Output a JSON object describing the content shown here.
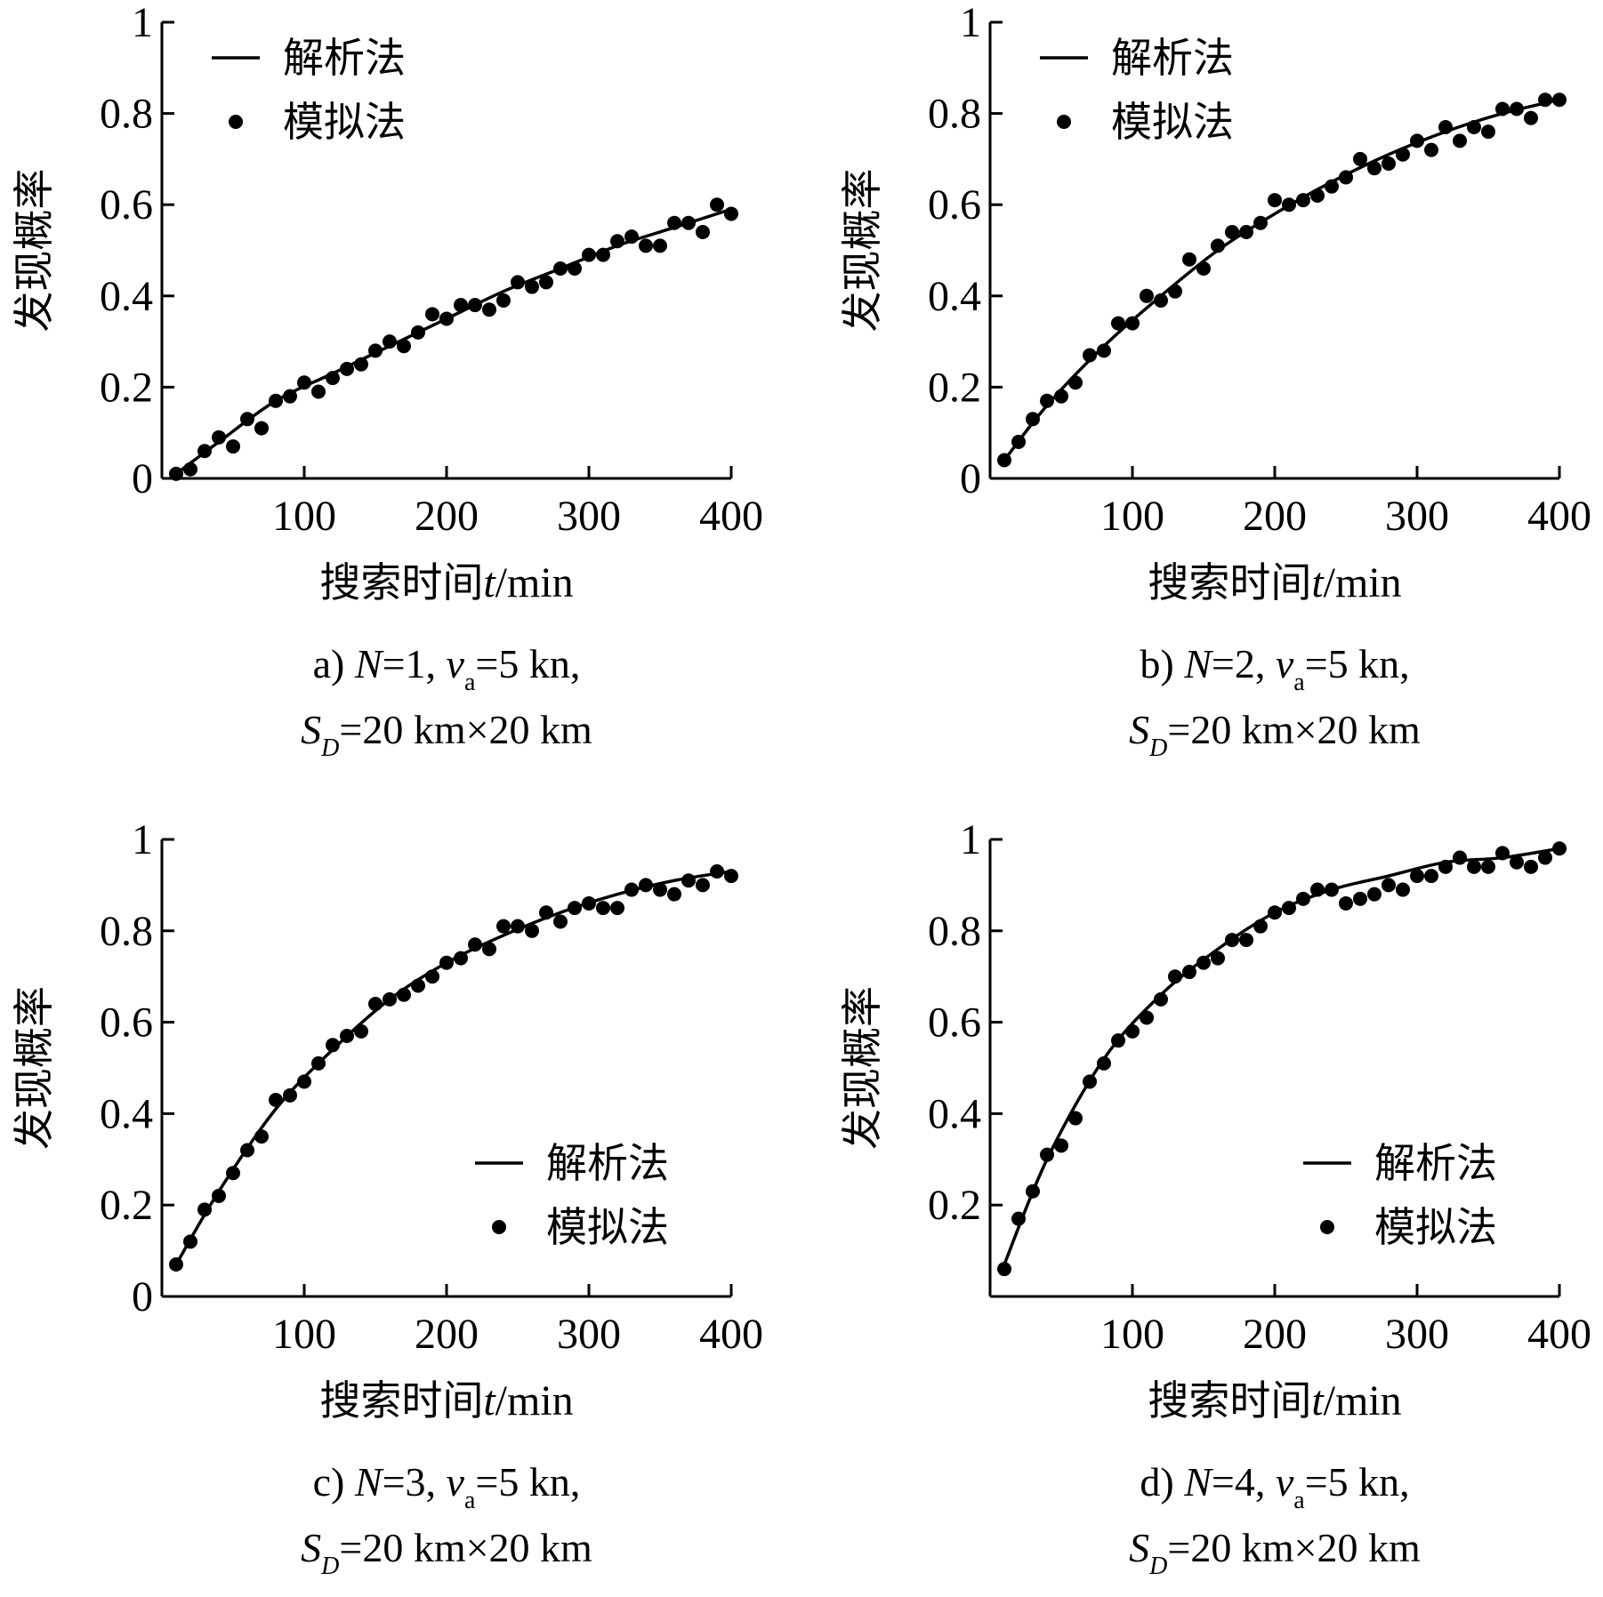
{
  "chart_data": [
    {
      "type": "line",
      "panel": "a",
      "caption_line1": "a) N=1, v_a=5 kn,",
      "caption_line2": "S_D=20 km×20 km",
      "caption": {
        "prefix": "a) ",
        "n_var": "N",
        "n_value": "=1, ",
        "v_var": "v",
        "v_sub": "a",
        "v_value": "=5 kn,",
        "s_var": "S",
        "s_sub": "D",
        "s_value": "=20 km×20 km"
      },
      "xlabel": "搜索时间t/min",
      "xlabel_parts": {
        "text": "搜索时间",
        "var": "t",
        "unit": "/min"
      },
      "ylabel": "发现概率",
      "xlim": [
        0,
        400
      ],
      "ylim": [
        0,
        1
      ],
      "xticks": [
        100,
        200,
        300,
        400
      ],
      "xtick_labels": [
        "100",
        "200",
        "300",
        "400"
      ],
      "yticks": [
        0,
        0.2,
        0.4,
        0.6,
        0.8,
        1
      ],
      "ytick_labels": [
        "0",
        "0.2",
        "0.4",
        "0.6",
        "0.8",
        "1"
      ],
      "legend_position": "top-left",
      "grid": false,
      "series": [
        {
          "name": "解析法",
          "kind": "line",
          "x": [
            10,
            40,
            80,
            120,
            160,
            200,
            240,
            280,
            320,
            360,
            400
          ],
          "y": [
            0.01,
            0.08,
            0.17,
            0.23,
            0.29,
            0.35,
            0.41,
            0.46,
            0.51,
            0.55,
            0.59
          ]
        },
        {
          "name": "模拟法",
          "kind": "scatter",
          "x": [
            10,
            20,
            30,
            40,
            50,
            60,
            70,
            80,
            90,
            100,
            110,
            120,
            130,
            140,
            150,
            160,
            170,
            180,
            190,
            200,
            210,
            220,
            230,
            240,
            250,
            260,
            270,
            280,
            290,
            300,
            310,
            320,
            330,
            340,
            350,
            360,
            370,
            380,
            390,
            400
          ],
          "y": [
            0.01,
            0.02,
            0.06,
            0.09,
            0.07,
            0.13,
            0.11,
            0.17,
            0.18,
            0.21,
            0.19,
            0.22,
            0.24,
            0.25,
            0.28,
            0.3,
            0.29,
            0.32,
            0.36,
            0.35,
            0.38,
            0.38,
            0.37,
            0.39,
            0.43,
            0.42,
            0.43,
            0.46,
            0.46,
            0.49,
            0.49,
            0.52,
            0.53,
            0.51,
            0.51,
            0.56,
            0.56,
            0.54,
            0.6,
            0.58
          ]
        }
      ]
    },
    {
      "type": "line",
      "panel": "b",
      "caption_line1": "b) N=2, v_a=5 kn,",
      "caption_line2": "S_D=20 km×20 km",
      "caption": {
        "prefix": "b) ",
        "n_var": "N",
        "n_value": "=2, ",
        "v_var": "v",
        "v_sub": "a",
        "v_value": "=5 kn,",
        "s_var": "S",
        "s_sub": "D",
        "s_value": "=20 km×20 km"
      },
      "xlabel": "搜索时间t/min",
      "xlabel_parts": {
        "text": "搜索时间",
        "var": "t",
        "unit": "/min"
      },
      "ylabel": "发现概率",
      "xlim": [
        0,
        400
      ],
      "ylim": [
        0,
        1
      ],
      "xticks": [
        100,
        200,
        300,
        400
      ],
      "xtick_labels": [
        "100",
        "200",
        "300",
        "400"
      ],
      "yticks": [
        0,
        0.2,
        0.4,
        0.6,
        0.8,
        1
      ],
      "ytick_labels": [
        "0",
        "0.2",
        "0.4",
        "0.6",
        "0.8",
        "1"
      ],
      "legend_position": "top-left",
      "grid": false,
      "series": [
        {
          "name": "解析法",
          "kind": "line",
          "x": [
            10,
            40,
            80,
            120,
            160,
            200,
            240,
            280,
            320,
            360,
            400
          ],
          "y": [
            0.04,
            0.16,
            0.29,
            0.4,
            0.5,
            0.58,
            0.65,
            0.71,
            0.76,
            0.8,
            0.83
          ]
        },
        {
          "name": "模拟法",
          "kind": "scatter",
          "x": [
            10,
            20,
            30,
            40,
            50,
            60,
            70,
            80,
            90,
            100,
            110,
            120,
            130,
            140,
            150,
            160,
            170,
            180,
            190,
            200,
            210,
            220,
            230,
            240,
            250,
            260,
            270,
            280,
            290,
            300,
            310,
            320,
            330,
            340,
            350,
            360,
            370,
            380,
            390,
            400
          ],
          "y": [
            0.04,
            0.08,
            0.13,
            0.17,
            0.18,
            0.21,
            0.27,
            0.28,
            0.34,
            0.34,
            0.4,
            0.39,
            0.41,
            0.48,
            0.46,
            0.51,
            0.54,
            0.54,
            0.56,
            0.61,
            0.6,
            0.61,
            0.62,
            0.64,
            0.66,
            0.7,
            0.68,
            0.69,
            0.71,
            0.74,
            0.72,
            0.77,
            0.74,
            0.77,
            0.76,
            0.81,
            0.81,
            0.79,
            0.83,
            0.83
          ]
        }
      ]
    },
    {
      "type": "line",
      "panel": "c",
      "caption_line1": "c) N=3, v_a=5 kn,",
      "caption_line2": "S_D=20 km×20 km",
      "caption": {
        "prefix": "c) ",
        "n_var": "N",
        "n_value": "=3, ",
        "v_var": "v",
        "v_sub": "a",
        "v_value": "=5 kn,",
        "s_var": "S",
        "s_sub": "D",
        "s_value": "=20 km×20 km"
      },
      "xlabel": "搜索时间t/min",
      "xlabel_parts": {
        "text": "搜索时间",
        "var": "t",
        "unit": "/min"
      },
      "ylabel": "发现概率",
      "xlim": [
        0,
        400
      ],
      "ylim": [
        0,
        1
      ],
      "xticks": [
        100,
        200,
        300,
        400
      ],
      "xtick_labels": [
        "100",
        "200",
        "300",
        "400"
      ],
      "yticks": [
        0,
        0.2,
        0.4,
        0.6,
        0.8,
        1
      ],
      "ytick_labels": [
        "0",
        "0.2",
        "0.4",
        "0.6",
        "0.8",
        "1"
      ],
      "legend_position": "bottom-right",
      "grid": false,
      "series": [
        {
          "name": "解析法",
          "kind": "line",
          "x": [
            10,
            40,
            80,
            120,
            160,
            200,
            240,
            280,
            320,
            360,
            400
          ],
          "y": [
            0.07,
            0.23,
            0.41,
            0.54,
            0.65,
            0.73,
            0.79,
            0.84,
            0.88,
            0.91,
            0.93
          ]
        },
        {
          "name": "模拟法",
          "kind": "scatter",
          "x": [
            10,
            20,
            30,
            40,
            50,
            60,
            70,
            80,
            90,
            100,
            110,
            120,
            130,
            140,
            150,
            160,
            170,
            180,
            190,
            200,
            210,
            220,
            230,
            240,
            250,
            260,
            270,
            280,
            290,
            300,
            310,
            320,
            330,
            340,
            350,
            360,
            370,
            380,
            390,
            400
          ],
          "y": [
            0.07,
            0.12,
            0.19,
            0.22,
            0.27,
            0.32,
            0.35,
            0.43,
            0.44,
            0.47,
            0.51,
            0.55,
            0.57,
            0.58,
            0.64,
            0.65,
            0.66,
            0.68,
            0.7,
            0.73,
            0.74,
            0.77,
            0.76,
            0.81,
            0.81,
            0.8,
            0.84,
            0.82,
            0.85,
            0.86,
            0.85,
            0.85,
            0.89,
            0.9,
            0.89,
            0.88,
            0.91,
            0.9,
            0.93,
            0.92
          ]
        }
      ]
    },
    {
      "type": "line",
      "panel": "d",
      "caption_line1": "d) N=4, v_a=5 kn,",
      "caption_line2": "S_D=20 km×20 km",
      "caption": {
        "prefix": "d) ",
        "n_var": "N",
        "n_value": "=4, ",
        "v_var": "v",
        "v_sub": "a",
        "v_value": "=5 kn,",
        "s_var": "S",
        "s_sub": "D",
        "s_value": "=20 km×20 km"
      },
      "xlabel": "搜索时间t/min",
      "xlabel_parts": {
        "text": "搜索时间",
        "var": "t",
        "unit": "/min"
      },
      "ylabel": "发现概率",
      "xlim": [
        0,
        400
      ],
      "ylim": [
        0,
        1
      ],
      "xticks": [
        100,
        200,
        300,
        400
      ],
      "xtick_labels": [
        "100",
        "200",
        "300",
        "400"
      ],
      "yticks": [
        0.2,
        0.4,
        0.6,
        0.8,
        1
      ],
      "ytick_labels": [
        "0.2",
        "0.4",
        "0.6",
        "0.8",
        "1"
      ],
      "legend_position": "bottom-right",
      "grid": false,
      "series": [
        {
          "name": "解析法",
          "kind": "line",
          "x": [
            10,
            40,
            80,
            120,
            160,
            200,
            240,
            280,
            320,
            360,
            400
          ],
          "y": [
            0.07,
            0.3,
            0.52,
            0.66,
            0.76,
            0.84,
            0.89,
            0.92,
            0.95,
            0.96,
            0.98
          ]
        },
        {
          "name": "模拟法",
          "kind": "scatter",
          "x": [
            10,
            20,
            30,
            40,
            50,
            60,
            70,
            80,
            90,
            100,
            110,
            120,
            130,
            140,
            150,
            160,
            170,
            180,
            190,
            200,
            210,
            220,
            230,
            240,
            250,
            260,
            270,
            280,
            290,
            300,
            310,
            320,
            330,
            340,
            350,
            360,
            370,
            380,
            390,
            400
          ],
          "y": [
            0.06,
            0.17,
            0.23,
            0.31,
            0.33,
            0.39,
            0.47,
            0.51,
            0.56,
            0.58,
            0.61,
            0.65,
            0.7,
            0.71,
            0.73,
            0.74,
            0.78,
            0.78,
            0.81,
            0.84,
            0.85,
            0.87,
            0.89,
            0.89,
            0.86,
            0.87,
            0.88,
            0.9,
            0.89,
            0.92,
            0.92,
            0.94,
            0.96,
            0.94,
            0.94,
            0.97,
            0.95,
            0.94,
            0.96,
            0.98
          ]
        }
      ]
    }
  ]
}
